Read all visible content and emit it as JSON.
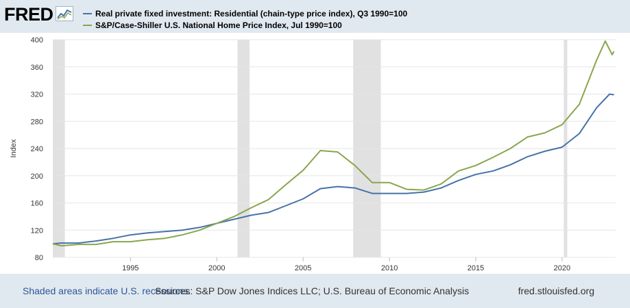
{
  "brand": {
    "logo_text": "FRED",
    "logo_icon": "line-graph-icon"
  },
  "notes": {
    "recession_note": "Shaded areas indicate U.S. recessions.",
    "sources": "Sources: S&P Dow Jones Indices LLC; U.S. Bureau of Economic Analysis",
    "site": "fred.stlouisfed.org"
  },
  "colors": {
    "series1": "#4572a7",
    "series2": "#89a54e",
    "recession": "#e1e1e1",
    "grid": "#e6e6e6"
  },
  "chart_data": {
    "type": "line",
    "ylabel": "Index",
    "xlabel": "",
    "xlim": [
      1990.5,
      2023.1
    ],
    "ylim": [
      80,
      400
    ],
    "x_ticks": [
      1995,
      2000,
      2005,
      2010,
      2015,
      2020
    ],
    "y_ticks": [
      80,
      120,
      160,
      200,
      240,
      280,
      320,
      360,
      400
    ],
    "grid": "horizontal",
    "legend_position": "top-left",
    "recessions": [
      [
        1990.5,
        1991.2
      ],
      [
        2001.2,
        2001.9
      ],
      [
        2007.9,
        2009.5
      ],
      [
        2020.1,
        2020.3
      ]
    ],
    "series": [
      {
        "name": "Real private fixed investment: Residential (chain-type price index), Q3 1990=100",
        "color": "#4572a7",
        "x": [
          1990.5,
          1991,
          1992,
          1993,
          1994,
          1995,
          1996,
          1997,
          1998,
          1999,
          2000,
          2001,
          2002,
          2003,
          2004,
          2005,
          2006,
          2007,
          2008,
          2009,
          2010,
          2011,
          2012,
          2013,
          2014,
          2015,
          2016,
          2017,
          2018,
          2019,
          2020,
          2021,
          2022,
          2022.75,
          2023
        ],
        "y": [
          100,
          101,
          101,
          104,
          108,
          113,
          116,
          118,
          120,
          124,
          130,
          136,
          142,
          146,
          156,
          166,
          181,
          184,
          182,
          174,
          174,
          174,
          176,
          182,
          193,
          202,
          207,
          216,
          228,
          236,
          242,
          262,
          300,
          320,
          319
        ]
      },
      {
        "name": "S&P/Case-Shiller U.S. National Home Price Index, Jul 1990=100",
        "color": "#89a54e",
        "x": [
          1990.5,
          1991,
          1992,
          1993,
          1994,
          1995,
          1996,
          1997,
          1998,
          1999,
          2000,
          2001,
          2002,
          2003,
          2004,
          2005,
          2006,
          2007,
          2008,
          2009,
          2010,
          2011,
          2012,
          2013,
          2014,
          2015,
          2016,
          2017,
          2018,
          2019,
          2020,
          2021,
          2022,
          2022.5,
          2022.9,
          2023
        ],
        "y": [
          100,
          97,
          99,
          99,
          103,
          103,
          106,
          108,
          113,
          120,
          130,
          140,
          153,
          165,
          187,
          208,
          237,
          235,
          215,
          190,
          190,
          180,
          179,
          188,
          207,
          215,
          227,
          240,
          257,
          263,
          275,
          305,
          370,
          398,
          378,
          383
        ]
      }
    ]
  }
}
